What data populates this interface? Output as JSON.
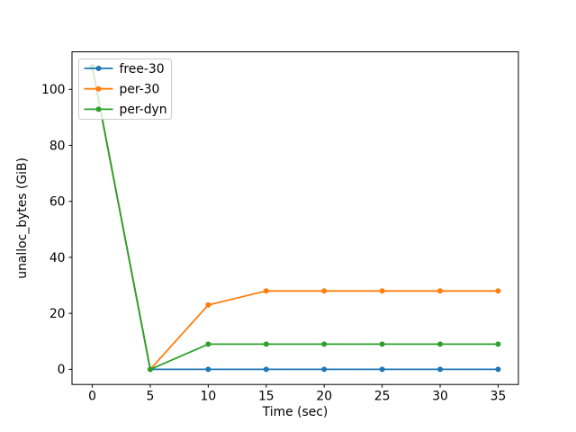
{
  "figure": {
    "background": "#ffffff"
  },
  "chart_data": {
    "type": "line",
    "title": "",
    "xlabel": "Time (sec)",
    "ylabel": "unalloc_bytes (GiB)",
    "x": [
      0,
      5,
      10,
      15,
      20,
      25,
      30,
      35
    ],
    "series": [
      {
        "name": "free-30",
        "color": "#1f77b4",
        "values": [
          108,
          0,
          0,
          0,
          0,
          0,
          0,
          0
        ]
      },
      {
        "name": "per-30",
        "color": "#ff7f0e",
        "values": [
          108,
          0,
          23,
          28,
          28,
          28,
          28,
          28
        ]
      },
      {
        "name": "per-dyn",
        "color": "#2ca02c",
        "values": [
          108,
          0,
          9,
          9,
          9,
          9,
          9,
          9
        ]
      }
    ],
    "xticks": [
      0,
      5,
      10,
      15,
      20,
      25,
      30,
      35
    ],
    "yticks": [
      0,
      20,
      40,
      60,
      80,
      100
    ],
    "xlim": [
      -1.75,
      36.75
    ],
    "ylim": [
      -5.4,
      113.4
    ],
    "grid": false,
    "marker": "circle",
    "legend": {
      "position": "upper left",
      "frame": true,
      "entries": [
        "free-30",
        "per-30",
        "per-dyn"
      ]
    }
  }
}
